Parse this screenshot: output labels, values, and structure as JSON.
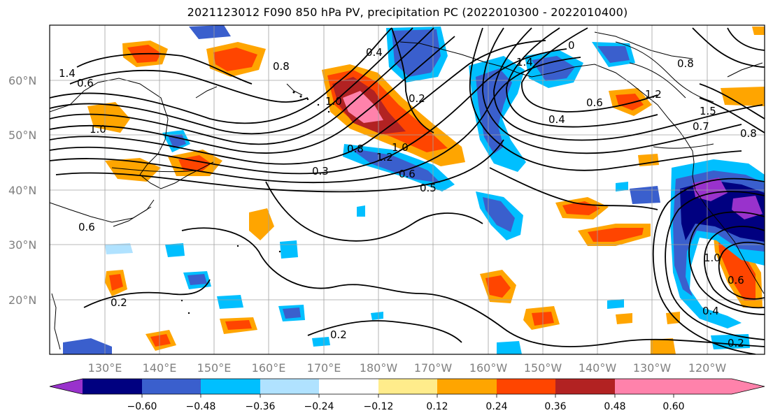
{
  "title": "2021123012 F090 850 hPa PV, precipitation PC (2022010300 - 2022010400)",
  "lat_labels": [
    "60°N",
    "50°N",
    "40°N",
    "30°N",
    "20°N"
  ],
  "lon_labels": [
    "130°E",
    "140°E",
    "150°E",
    "160°E",
    "170°E",
    "180°W",
    "170°W",
    "160°W",
    "150°W",
    "140°W",
    "130°W",
    "120°W"
  ],
  "colorbar": {
    "ticks": [
      "−0.60",
      "−0.48",
      "−0.36",
      "−0.24",
      "−0.12",
      "0.12",
      "0.24",
      "0.36",
      "0.48",
      "0.60"
    ],
    "colors": [
      "#9932cc",
      "#000080",
      "#3a5fcd",
      "#00bfff",
      "#b0e2ff",
      "#ffffff",
      "#ffec8b",
      "#ffa500",
      "#ff4500",
      "#b22222",
      "#ff82ab"
    ]
  },
  "contour_labels": [
    {
      "text": "0.4"
    },
    {
      "text": "0.2"
    },
    {
      "text": "1.4"
    },
    {
      "text": "0"
    },
    {
      "text": "0.6"
    },
    {
      "text": "0.8"
    },
    {
      "text": "1.0"
    },
    {
      "text": "1.0"
    },
    {
      "text": "1.2"
    },
    {
      "text": "1.2"
    },
    {
      "text": "0.8"
    },
    {
      "text": "1.0"
    },
    {
      "text": "0.4"
    },
    {
      "text": "0.6"
    },
    {
      "text": "0.3"
    },
    {
      "text": "0.2"
    },
    {
      "text": "0.2"
    },
    {
      "text": "0.2"
    },
    {
      "text": "1.5"
    },
    {
      "text": "0.7"
    },
    {
      "text": "0.8"
    },
    {
      "text": "0.6"
    },
    {
      "text": "0.6"
    },
    {
      "text": "1.4"
    },
    {
      "text": "0.8"
    },
    {
      "text": "0.6"
    },
    {
      "text": "0.4"
    },
    {
      "text": "0.5"
    },
    {
      "text": "1.0"
    }
  ]
}
